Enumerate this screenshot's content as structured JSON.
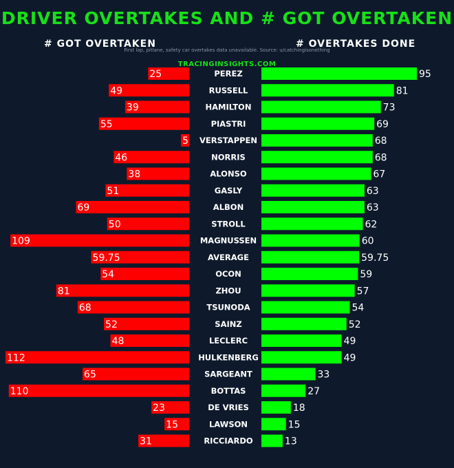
{
  "title": "DRIVER OVERTAKES AND # GOT OVERTAKEN",
  "subtitle": "First lap, pitlane, safety car overtakes data unavailable. Source: u/catchingisonething",
  "watermark": "TRACINGINSIGHTS.COM",
  "left_header": "# GOT OVERTAKEN",
  "right_header": "# OVERTAKES DONE",
  "colors": {
    "background": "#0e1a2b",
    "got_overtaken": "#ff0000",
    "overtakes_done": "#00ff00",
    "title": "#18e018"
  },
  "chart_data": {
    "type": "bar",
    "orientation": "horizontal-diverging",
    "categories": [
      "PEREZ",
      "RUSSELL",
      "HAMILTON",
      "PIASTRI",
      "VERSTAPPEN",
      "NORRIS",
      "ALONSO",
      "GASLY",
      "ALBON",
      "STROLL",
      "MAGNUSSEN",
      "AVERAGE",
      "OCON",
      "ZHOU",
      "TSUNODA",
      "SAINZ",
      "LECLERC",
      "HULKENBERG",
      "SARGEANT",
      "BOTTAS",
      "DE VRIES",
      "LAWSON",
      "RICCIARDO"
    ],
    "series": [
      {
        "name": "# GOT OVERTAKEN",
        "values": [
          25,
          49,
          39,
          55,
          5,
          46,
          38,
          51,
          69,
          50,
          109,
          59.75,
          54,
          81,
          68,
          52,
          48,
          112,
          65,
          110,
          23,
          15,
          31
        ]
      },
      {
        "name": "# OVERTAKES DONE",
        "values": [
          95,
          81,
          73,
          69,
          68,
          68,
          67,
          63,
          63,
          62,
          60,
          59.75,
          59,
          57,
          54,
          52,
          49,
          49,
          33,
          27,
          18,
          15,
          13
        ]
      }
    ],
    "labels_left": [
      "25",
      "49",
      "39",
      "55",
      "5",
      "46",
      "38",
      "51",
      "69",
      "50",
      "109",
      "59.75",
      "54",
      "81",
      "68",
      "52",
      "48",
      "112",
      "65",
      "110",
      "23",
      "15",
      "31"
    ],
    "labels_right": [
      "95",
      "81",
      "73",
      "69",
      "68",
      "68",
      "67",
      "63",
      "63",
      "62",
      "60",
      "59.75",
      "59",
      "57",
      "54",
      "52",
      "49",
      "49",
      "33",
      "27",
      "18",
      "15",
      "13"
    ],
    "grid": false,
    "legend": "none"
  }
}
